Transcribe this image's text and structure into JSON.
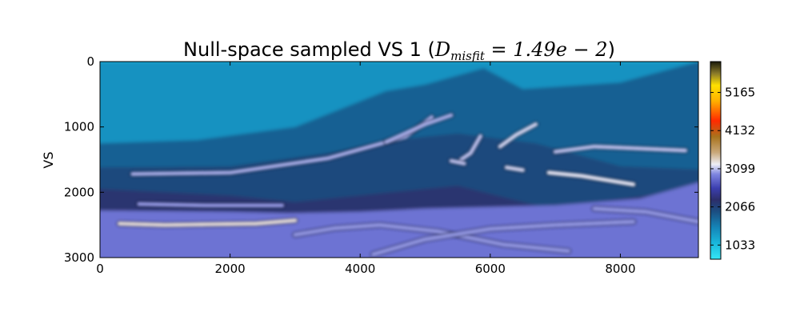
{
  "chart_data": {
    "type": "heatmap",
    "title": {
      "text": "Null-space sampled VS 1 (",
      "math": "D",
      "math_sub": "misfit",
      "math_rest": " = 1.49e − 2",
      "close": ")"
    },
    "xlabel": "",
    "ylabel": "VS",
    "xlim": [
      0,
      9200
    ],
    "ylim": [
      3000,
      0
    ],
    "x_ticks": [
      0,
      2000,
      4000,
      6000,
      8000
    ],
    "y_ticks": [
      0,
      1000,
      2000,
      3000
    ],
    "colorbar": {
      "vmin": 650,
      "vmax": 6000,
      "ticks": [
        1033,
        2066,
        3099,
        4132,
        5165
      ]
    },
    "layers": [
      {
        "name": "water",
        "value": 1400,
        "top": [
          [
            0,
            0
          ],
          [
            9200,
            0
          ]
        ]
      },
      {
        "name": "shallow-sediment",
        "value": 1800,
        "top": [
          [
            0,
            1250
          ],
          [
            1500,
            1200
          ],
          [
            3000,
            1000
          ],
          [
            4400,
            450
          ],
          [
            5000,
            350
          ],
          [
            5900,
            100
          ],
          [
            6500,
            420
          ],
          [
            8000,
            320
          ],
          [
            9200,
            0
          ]
        ]
      },
      {
        "name": "mid-sediment",
        "value": 2000,
        "top": [
          [
            0,
            1620
          ],
          [
            2000,
            1600
          ],
          [
            3500,
            1400
          ],
          [
            4500,
            1200
          ],
          [
            5500,
            1100
          ],
          [
            6700,
            1250
          ],
          [
            8000,
            1600
          ],
          [
            9200,
            1650
          ]
        ]
      },
      {
        "name": "deep-sediment",
        "value": 2200,
        "top": [
          [
            0,
            1950
          ],
          [
            2000,
            2050
          ],
          [
            3000,
            2150
          ],
          [
            4500,
            2000
          ],
          [
            5500,
            1900
          ],
          [
            6900,
            2250
          ],
          [
            9200,
            1950
          ]
        ]
      },
      {
        "name": "basement",
        "value": 2850,
        "top": [
          [
            0,
            2280
          ],
          [
            2000,
            2300
          ],
          [
            2900,
            2320
          ],
          [
            4000,
            2300
          ],
          [
            5000,
            2250
          ],
          [
            7000,
            2200
          ],
          [
            8300,
            2100
          ],
          [
            9200,
            1850
          ]
        ]
      }
    ],
    "bands": [
      {
        "value": 3050,
        "points": [
          [
            500,
            1720
          ],
          [
            2000,
            1700
          ],
          [
            3500,
            1480
          ],
          [
            4700,
            1150
          ],
          [
            5100,
            850
          ]
        ]
      },
      {
        "value": 3000,
        "points": [
          [
            600,
            2180
          ],
          [
            1600,
            2200
          ],
          [
            2800,
            2200
          ]
        ]
      },
      {
        "value": 3300,
        "points": [
          [
            300,
            2480
          ],
          [
            1000,
            2500
          ],
          [
            2400,
            2480
          ],
          [
            3000,
            2430
          ]
        ]
      },
      {
        "value": 3050,
        "points": [
          [
            4400,
            1230
          ],
          [
            5000,
            960
          ],
          [
            5400,
            820
          ]
        ]
      },
      {
        "value": 3100,
        "points": [
          [
            5550,
            1500
          ],
          [
            5700,
            1400
          ],
          [
            5850,
            1140
          ]
        ]
      },
      {
        "value": 3150,
        "points": [
          [
            6150,
            1300
          ],
          [
            6400,
            1120
          ],
          [
            6700,
            960
          ]
        ]
      },
      {
        "value": 3100,
        "points": [
          [
            7000,
            1380
          ],
          [
            7600,
            1300
          ],
          [
            8300,
            1330
          ],
          [
            9000,
            1360
          ]
        ]
      },
      {
        "value": 3150,
        "points": [
          [
            6250,
            1620
          ],
          [
            6500,
            1660
          ]
        ]
      },
      {
        "value": 3200,
        "points": [
          [
            6900,
            1700
          ],
          [
            7400,
            1750
          ],
          [
            8200,
            1880
          ]
        ]
      },
      {
        "value": 3100,
        "points": [
          [
            5400,
            1520
          ],
          [
            5600,
            1560
          ]
        ]
      },
      {
        "value": 3000,
        "points": [
          [
            3000,
            2650
          ],
          [
            3600,
            2550
          ],
          [
            4300,
            2500
          ],
          [
            5200,
            2600
          ],
          [
            6200,
            2800
          ],
          [
            7200,
            2900
          ]
        ]
      },
      {
        "value": 3000,
        "points": [
          [
            4200,
            2950
          ],
          [
            5000,
            2720
          ],
          [
            6000,
            2560
          ],
          [
            7000,
            2500
          ],
          [
            8200,
            2450
          ]
        ]
      },
      {
        "value": 3000,
        "points": [
          [
            7600,
            2250
          ],
          [
            8400,
            2300
          ],
          [
            9200,
            2450
          ]
        ]
      }
    ]
  }
}
